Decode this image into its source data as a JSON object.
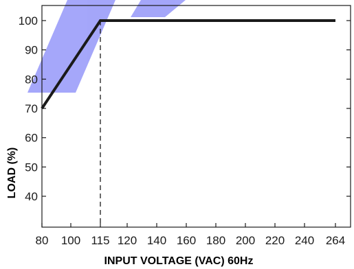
{
  "colors": {
    "line": "#1a1a1a",
    "axis": "#1a1a1a",
    "watermark": "#5b5ff5"
  },
  "chart_data": {
    "type": "line",
    "title": "",
    "xlabel": "INPUT VOLTAGE (VAC) 60Hz",
    "ylabel": "LOAD (%)",
    "x_ticks": [
      80,
      100,
      115,
      120,
      140,
      160,
      180,
      200,
      220,
      240,
      264
    ],
    "y_ticks": [
      40,
      50,
      60,
      70,
      80,
      90,
      100
    ],
    "xlim": [
      80,
      270
    ],
    "ylim": [
      30,
      105
    ],
    "grid": false,
    "series": [
      {
        "x": [
          80,
          115,
          264
        ],
        "y": [
          70,
          100,
          100
        ]
      }
    ],
    "reference_line": {
      "x": 115,
      "style": "dashed"
    }
  }
}
